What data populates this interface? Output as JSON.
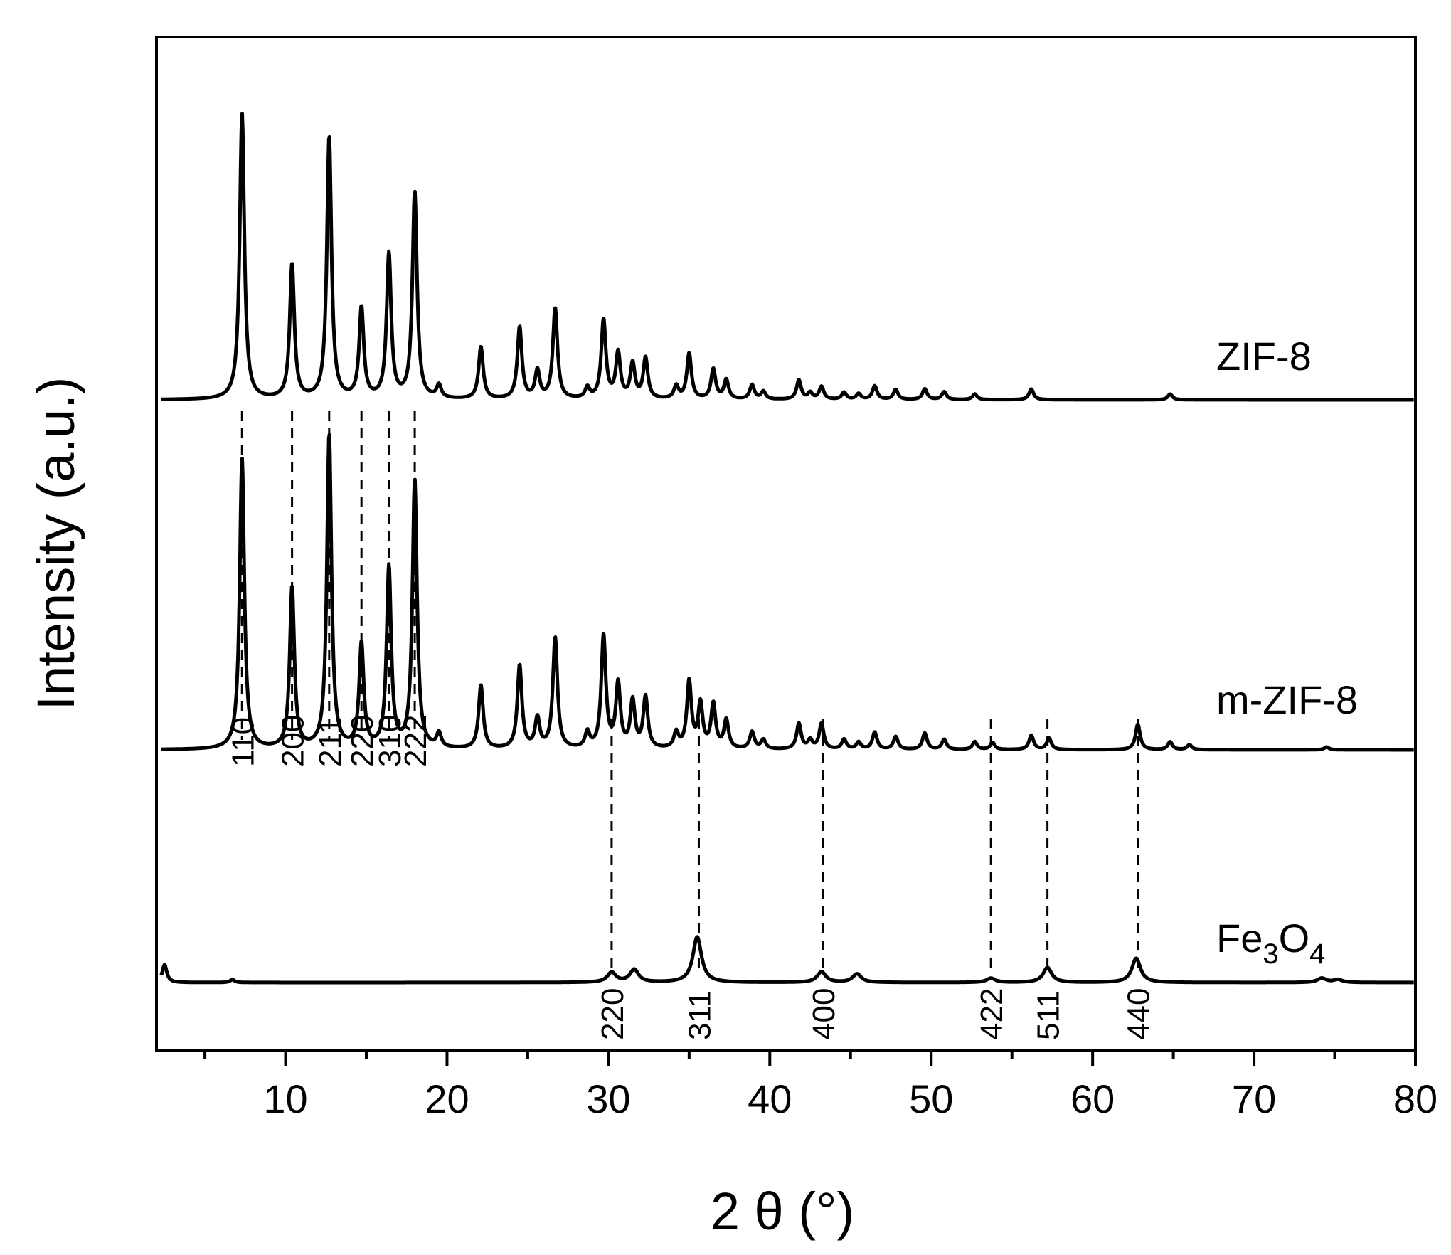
{
  "chart_data": {
    "type": "line",
    "title": "",
    "xlabel": "2 θ (°)",
    "ylabel": "Intensity (a.u.)",
    "xlim": [
      2,
      80
    ],
    "x_ticks": [
      10,
      20,
      30,
      40,
      50,
      60,
      70,
      80
    ],
    "y_ticks_visible": false,
    "grid": false,
    "legend": "none",
    "line_color": "#000000",
    "series": [
      {
        "name": "ZIF-8",
        "baseline": 0,
        "peaks": [
          {
            "x": 7.3,
            "h": 403
          },
          {
            "x": 10.4,
            "h": 189
          },
          {
            "x": 12.7,
            "h": 368
          },
          {
            "x": 14.7,
            "h": 127
          },
          {
            "x": 16.4,
            "h": 203
          },
          {
            "x": 18.0,
            "h": 291
          },
          {
            "x": 19.5,
            "h": 18
          },
          {
            "x": 22.1,
            "h": 73
          },
          {
            "x": 24.5,
            "h": 101
          },
          {
            "x": 25.6,
            "h": 39
          },
          {
            "x": 26.7,
            "h": 127
          },
          {
            "x": 28.7,
            "h": 15
          },
          {
            "x": 29.7,
            "h": 111
          },
          {
            "x": 30.6,
            "h": 64
          },
          {
            "x": 31.5,
            "h": 49
          },
          {
            "x": 32.3,
            "h": 57
          },
          {
            "x": 34.2,
            "h": 18
          },
          {
            "x": 35.0,
            "h": 64
          },
          {
            "x": 36.5,
            "h": 42
          },
          {
            "x": 37.3,
            "h": 27
          },
          {
            "x": 38.9,
            "h": 20
          },
          {
            "x": 39.6,
            "h": 11
          },
          {
            "x": 41.8,
            "h": 27
          },
          {
            "x": 42.5,
            "h": 9
          },
          {
            "x": 43.2,
            "h": 18
          },
          {
            "x": 44.6,
            "h": 10
          },
          {
            "x": 45.5,
            "h": 8
          },
          {
            "x": 46.5,
            "h": 19
          },
          {
            "x": 47.8,
            "h": 14
          },
          {
            "x": 49.6,
            "h": 15
          },
          {
            "x": 50.8,
            "h": 11
          },
          {
            "x": 52.7,
            "h": 8
          },
          {
            "x": 56.2,
            "h": 15
          },
          {
            "x": 64.8,
            "h": 8
          }
        ]
      },
      {
        "name": "m-ZIF-8",
        "baseline": 0,
        "peaks": [
          {
            "x": 7.3,
            "h": 410
          },
          {
            "x": 10.4,
            "h": 227
          },
          {
            "x": 12.7,
            "h": 441
          },
          {
            "x": 14.7,
            "h": 146
          },
          {
            "x": 16.4,
            "h": 254
          },
          {
            "x": 18.0,
            "h": 378
          },
          {
            "x": 19.5,
            "h": 20
          },
          {
            "x": 22.1,
            "h": 89
          },
          {
            "x": 24.5,
            "h": 117
          },
          {
            "x": 25.6,
            "h": 42
          },
          {
            "x": 26.7,
            "h": 156
          },
          {
            "x": 28.7,
            "h": 22
          },
          {
            "x": 29.7,
            "h": 158
          },
          {
            "x": 30.6,
            "h": 90
          },
          {
            "x": 31.5,
            "h": 66
          },
          {
            "x": 32.3,
            "h": 72
          },
          {
            "x": 34.2,
            "h": 22
          },
          {
            "x": 35.0,
            "h": 94
          },
          {
            "x": 35.7,
            "h": 62
          },
          {
            "x": 36.5,
            "h": 62
          },
          {
            "x": 37.3,
            "h": 40
          },
          {
            "x": 38.9,
            "h": 24
          },
          {
            "x": 39.6,
            "h": 13
          },
          {
            "x": 41.8,
            "h": 36
          },
          {
            "x": 42.5,
            "h": 12
          },
          {
            "x": 43.2,
            "h": 36
          },
          {
            "x": 44.6,
            "h": 14
          },
          {
            "x": 45.5,
            "h": 10
          },
          {
            "x": 46.5,
            "h": 24
          },
          {
            "x": 47.8,
            "h": 18
          },
          {
            "x": 49.6,
            "h": 23
          },
          {
            "x": 50.8,
            "h": 14
          },
          {
            "x": 52.7,
            "h": 11
          },
          {
            "x": 53.8,
            "h": 10
          },
          {
            "x": 56.2,
            "h": 20
          },
          {
            "x": 57.3,
            "h": 16
          },
          {
            "x": 62.8,
            "h": 36
          },
          {
            "x": 64.8,
            "h": 11
          },
          {
            "x": 66.0,
            "h": 7
          },
          {
            "x": 74.5,
            "h": 4
          }
        ]
      },
      {
        "name": "Fe3O4",
        "baseline": 0,
        "peaks": [
          {
            "x": 2.5,
            "h": 25
          },
          {
            "x": 6.7,
            "h": 4
          },
          {
            "x": 30.2,
            "h": 14
          },
          {
            "x": 31.6,
            "h": 18
          },
          {
            "x": 35.5,
            "h": 64
          },
          {
            "x": 43.2,
            "h": 15
          },
          {
            "x": 45.4,
            "h": 12
          },
          {
            "x": 53.7,
            "h": 6
          },
          {
            "x": 57.2,
            "h": 21
          },
          {
            "x": 62.7,
            "h": 34
          },
          {
            "x": 74.2,
            "h": 6
          },
          {
            "x": 75.2,
            "h": 4
          }
        ]
      }
    ],
    "series_labels": [
      {
        "text": "ZIF-8",
        "series": "ZIF-8"
      },
      {
        "text": "m-ZIF-8",
        "series": "m-ZIF-8"
      },
      {
        "base": "Fe",
        "sub1": "3",
        "mid": "O",
        "sub2": "4",
        "series": "Fe3O4"
      }
    ],
    "zif8_reflections": [
      {
        "hkl": "110",
        "x": 7.3
      },
      {
        "hkl": "200",
        "x": 10.4
      },
      {
        "hkl": "211",
        "x": 12.7
      },
      {
        "hkl": "220",
        "x": 14.7
      },
      {
        "hkl": "310",
        "x": 16.4
      },
      {
        "hkl": "222",
        "x": 18.0
      }
    ],
    "fe3o4_reflections": [
      {
        "hkl": "220",
        "x": 30.2
      },
      {
        "hkl": "311",
        "x": 35.6
      },
      {
        "hkl": "400",
        "x": 43.3
      },
      {
        "hkl": "422",
        "x": 53.7
      },
      {
        "hkl": "511",
        "x": 57.2
      },
      {
        "hkl": "440",
        "x": 62.8
      }
    ]
  }
}
